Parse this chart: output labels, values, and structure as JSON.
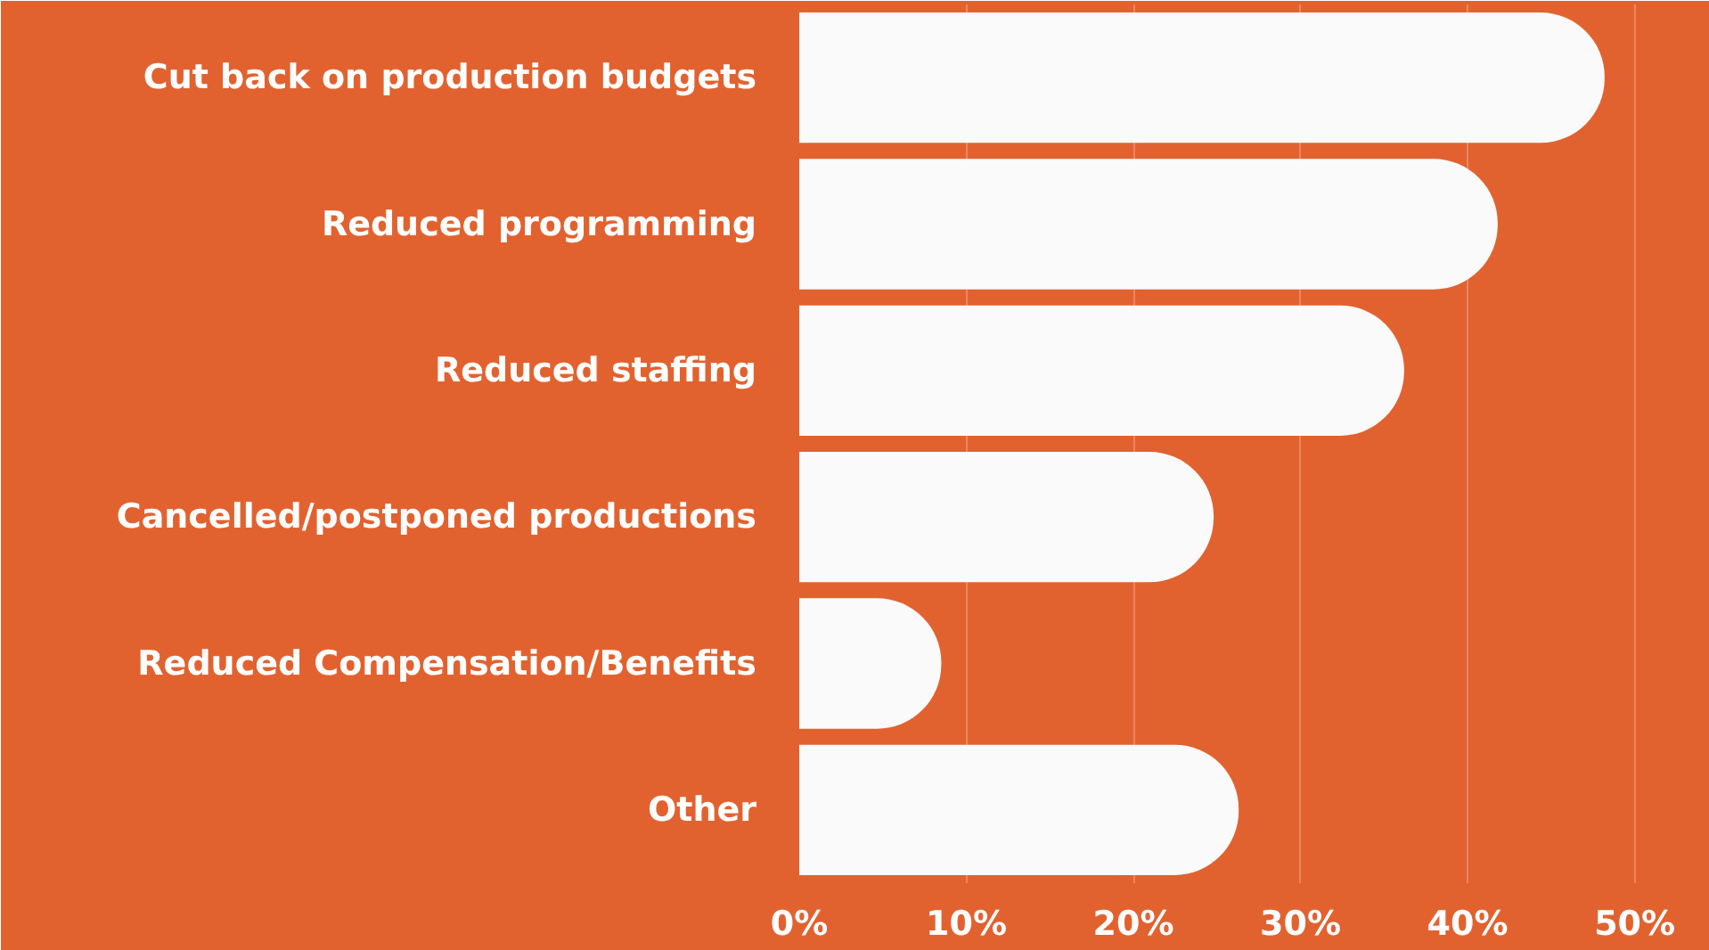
{
  "chart_data": {
    "type": "bar",
    "orientation": "horizontal",
    "categories": [
      "Cut back on production budgets",
      "Reduced programming",
      "Reduced staffing",
      "Cancelled/postponed productions",
      "Reduced Compensation/Benefits",
      "Other"
    ],
    "values": [
      48.2,
      41.8,
      36.2,
      24.8,
      8.5,
      26.3
    ],
    "color": "#fafafa",
    "xlim": [
      0,
      54.5
    ],
    "xticks": [
      {
        "value": 0,
        "label": "0%"
      },
      {
        "value": 10,
        "label": "10%"
      },
      {
        "value": 20,
        "label": "20%"
      },
      {
        "value": 30,
        "label": "30%"
      },
      {
        "value": 40,
        "label": "40%"
      },
      {
        "value": 50,
        "label": "50%"
      }
    ],
    "grid": "x"
  }
}
